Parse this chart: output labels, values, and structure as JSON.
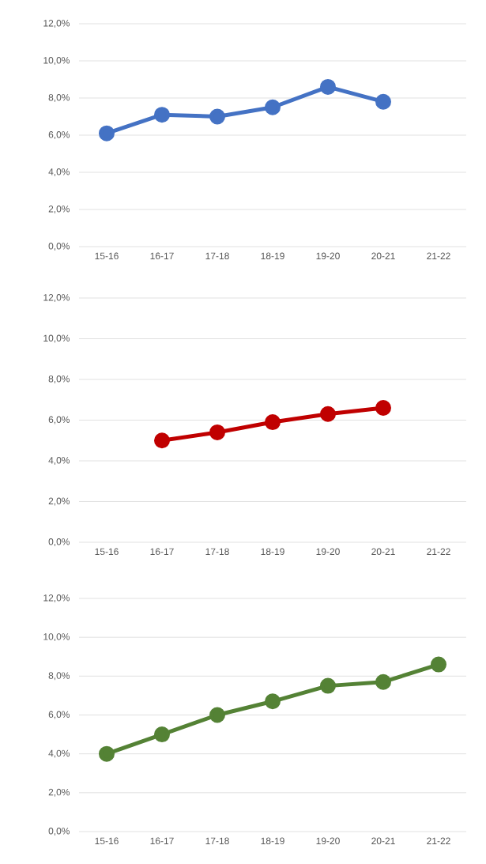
{
  "chart_data": [
    {
      "type": "line",
      "categories": [
        "15-16",
        "16-17",
        "17-18",
        "18-19",
        "19-20",
        "20-21",
        "21-22"
      ],
      "series": [
        {
          "color": "#4472c4",
          "values": [
            6.1,
            7.1,
            7.0,
            7.5,
            8.6,
            7.8,
            null
          ]
        }
      ],
      "ylim": [
        0,
        12
      ],
      "yticks": [
        {
          "value": 0,
          "label": "0,0%"
        },
        {
          "value": 2,
          "label": "2,0%"
        },
        {
          "value": 4,
          "label": "4,0%"
        },
        {
          "value": 6,
          "label": "6,0%"
        },
        {
          "value": 8,
          "label": "8,0%"
        },
        {
          "value": 10,
          "label": "10,0%"
        },
        {
          "value": 12,
          "label": "12,0%"
        }
      ],
      "grid": "y",
      "marker": "circle",
      "line_style": "solid"
    },
    {
      "type": "line",
      "categories": [
        "15-16",
        "16-17",
        "17-18",
        "18-19",
        "19-20",
        "20-21",
        "21-22"
      ],
      "series": [
        {
          "color": "#c00000",
          "values": [
            null,
            5.0,
            5.4,
            5.9,
            6.3,
            6.6,
            null
          ]
        }
      ],
      "ylim": [
        0,
        12
      ],
      "yticks": [
        {
          "value": 0,
          "label": "0,0%"
        },
        {
          "value": 2,
          "label": "2,0%"
        },
        {
          "value": 4,
          "label": "4,0%"
        },
        {
          "value": 6,
          "label": "6,0%"
        },
        {
          "value": 8,
          "label": "8,0%"
        },
        {
          "value": 10,
          "label": "10,0%"
        },
        {
          "value": 12,
          "label": "12,0%"
        }
      ],
      "grid": "y",
      "marker": "circle",
      "line_style": "solid"
    },
    {
      "type": "line",
      "categories": [
        "15-16",
        "16-17",
        "17-18",
        "18-19",
        "19-20",
        "20-21",
        "21-22"
      ],
      "series": [
        {
          "color": "#548235",
          "values": [
            4.0,
            5.0,
            6.0,
            6.7,
            7.5,
            7.7,
            8.6
          ]
        }
      ],
      "ylim": [
        0,
        12
      ],
      "yticks": [
        {
          "value": 0,
          "label": "0,0%"
        },
        {
          "value": 2,
          "label": "2,0%"
        },
        {
          "value": 4,
          "label": "4,0%"
        },
        {
          "value": 6,
          "label": "6,0%"
        },
        {
          "value": 8,
          "label": "8,0%"
        },
        {
          "value": 10,
          "label": "10,0%"
        },
        {
          "value": 12,
          "label": "12,0%"
        }
      ],
      "grid": "y",
      "marker": "circle",
      "line_style": "solid"
    }
  ]
}
